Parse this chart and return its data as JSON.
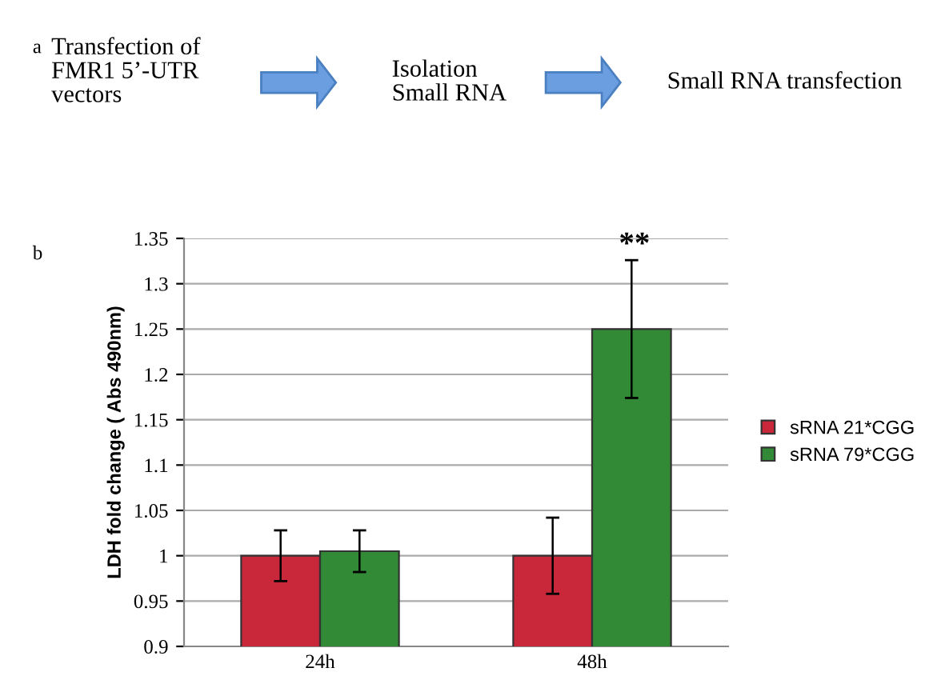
{
  "chart_data": {
    "type": "bar",
    "ylabel": "LDH fold change ( Abs 490nm)",
    "categories": [
      "24h",
      "48h"
    ],
    "series": [
      {
        "name": "sRNA 21*CGG",
        "color": "#c8283a",
        "values": [
          1.0,
          1.0
        ],
        "errors": [
          0.028,
          0.042
        ]
      },
      {
        "name": "sRNA 79*CGG",
        "color": "#328a37",
        "values": [
          1.005,
          1.25
        ],
        "errors": [
          0.023,
          0.076
        ]
      }
    ],
    "ylim": [
      0.9,
      1.35
    ],
    "yticks": [
      0.9,
      0.95,
      1,
      1.05,
      1.1,
      1.15,
      1.2,
      1.25,
      1.3,
      1.35
    ],
    "grid": "y",
    "legend": "right",
    "annotations": [
      "a",
      "Transfection of\nFMR1 5’-UTR\nvectors",
      "Isolation\nSmall RNA",
      "Small RNA transfection",
      "b",
      "**"
    ]
  }
}
